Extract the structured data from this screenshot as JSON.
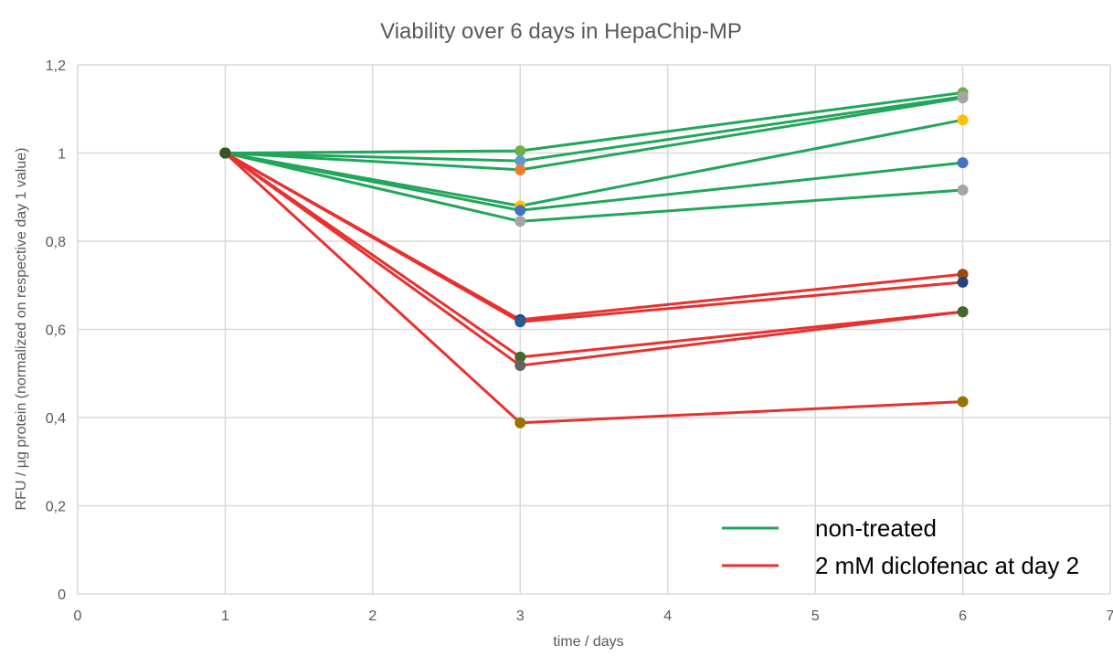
{
  "chart_data": {
    "type": "line",
    "title": "Viability over 6 days in HepaChip-MP",
    "xlabel": "time / days",
    "ylabel": "RFU / µg protein (normalized on respective day 1 value)",
    "xlim": [
      0,
      7
    ],
    "ylim": [
      0,
      1.2
    ],
    "x_ticks": [
      "0",
      "1",
      "2",
      "3",
      "4",
      "5",
      "6",
      "7"
    ],
    "y_ticks": [
      "0",
      "0,2",
      "0,4",
      "0,6",
      "0,8",
      "1",
      "1,2"
    ],
    "grid": "vertical and horizontal",
    "legend_position": "bottom-right",
    "legend": [
      {
        "label": "non-treated",
        "color": "#21a65a"
      },
      {
        "label": "2 mM diclofenac at day 2",
        "color": "#e8312f"
      }
    ],
    "x": [
      1,
      3,
      6
    ],
    "series": [
      {
        "group": "non-treated",
        "color": "#21a65a",
        "marker_colors": [
          "#375623",
          "#70ad47",
          "#70ad47"
        ],
        "values": [
          1,
          1.005,
          1.137
        ]
      },
      {
        "group": "non-treated",
        "color": "#21a65a",
        "marker_colors": [
          "#375623",
          "#5b9bd5",
          "#a5a5a5"
        ],
        "values": [
          1,
          0.982,
          1.128
        ]
      },
      {
        "group": "non-treated",
        "color": "#21a65a",
        "marker_colors": [
          "#375623",
          "#ed7d31",
          "#a5a5a5"
        ],
        "values": [
          1,
          0.962,
          1.125
        ]
      },
      {
        "group": "non-treated",
        "color": "#21a65a",
        "marker_colors": [
          "#375623",
          "#ffc000",
          "#ffc000"
        ],
        "values": [
          1,
          0.88,
          1.075
        ]
      },
      {
        "group": "non-treated",
        "color": "#21a65a",
        "marker_colors": [
          "#375623",
          "#4472c4",
          "#4472c4"
        ],
        "values": [
          1,
          0.87,
          0.978
        ]
      },
      {
        "group": "non-treated",
        "color": "#21a65a",
        "marker_colors": [
          "#375623",
          "#a5a5a5",
          "#a5a5a5"
        ],
        "values": [
          1,
          0.845,
          0.916
        ]
      },
      {
        "group": "2 mM diclofenac at day 2",
        "color": "#e8312f",
        "marker_colors": [
          "#375623",
          "#264478",
          "#9e480e"
        ],
        "values": [
          1,
          0.622,
          0.725
        ]
      },
      {
        "group": "2 mM diclofenac at day 2",
        "color": "#e8312f",
        "marker_colors": [
          "#375623",
          "#255e91",
          "#264478"
        ],
        "values": [
          1,
          0.617,
          0.707
        ]
      },
      {
        "group": "2 mM diclofenac at day 2",
        "color": "#e8312f",
        "marker_colors": [
          "#375623",
          "#43682b",
          "#43682b"
        ],
        "values": [
          1,
          0.537,
          0.64
        ]
      },
      {
        "group": "2 mM diclofenac at day 2",
        "color": "#e8312f",
        "marker_colors": [
          "#375623",
          "#636363",
          "#43682b"
        ],
        "values": [
          1,
          0.518,
          0.64
        ]
      },
      {
        "group": "2 mM diclofenac at day 2",
        "color": "#e8312f",
        "marker_colors": [
          "#375623",
          "#997300",
          "#997300"
        ],
        "values": [
          1,
          0.388,
          0.436
        ]
      }
    ]
  }
}
